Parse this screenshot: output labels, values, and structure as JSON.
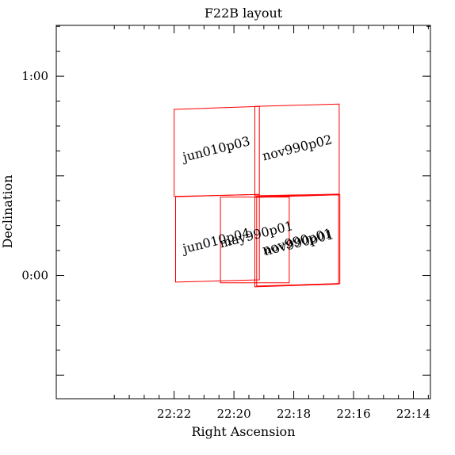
{
  "chart_data": {
    "type": "field-layout",
    "title": "F22B layout",
    "xlabel": "Right Ascension",
    "ylabel": "Declination",
    "x_unit": "RA (minutes past 22h)",
    "y_unit": "Dec (arcminutes)",
    "xlim": [
      25.94,
      13.43
    ],
    "ylim": [
      -37.1,
      75.3
    ],
    "x_ticks": [
      {
        "value": 14,
        "label": "22:14"
      },
      {
        "value": 16,
        "label": "22:16"
      },
      {
        "value": 18,
        "label": "22:18"
      },
      {
        "value": 20,
        "label": "22:20"
      },
      {
        "value": 22,
        "label": "22:22"
      }
    ],
    "y_ticks": [
      {
        "value": -30,
        "label": ""
      },
      {
        "value": 0,
        "label": "0:00"
      },
      {
        "value": 30,
        "label": ""
      },
      {
        "value": 60,
        "label": "1:00"
      }
    ],
    "minor_ticks_per_major": 4,
    "grid": false,
    "outline_color": "#ff0000",
    "fields": [
      {
        "name": "nov990p02",
        "corners": [
          [
            16.48,
            51.6
          ],
          [
            19.3,
            50.9
          ],
          [
            19.3,
            23.5
          ],
          [
            16.48,
            24.3
          ]
        ],
        "label_pos": [
          17.85,
          37.2
        ]
      },
      {
        "name": "jun010p03",
        "corners": [
          [
            19.15,
            50.9
          ],
          [
            22.0,
            50.0
          ],
          [
            22.0,
            23.8
          ],
          [
            19.15,
            24.4
          ]
        ],
        "label_pos": [
          20.55,
          36.8
        ]
      },
      {
        "name": "nov990p01",
        "corners": [
          [
            16.5,
            24.5
          ],
          [
            19.3,
            24.0
          ],
          [
            19.3,
            -3.4
          ],
          [
            16.5,
            -2.6
          ]
        ],
        "label_pos": [
          17.85,
          9.0
        ]
      },
      {
        "name": "nov990p01",
        "corners": [
          [
            16.46,
            24.3
          ],
          [
            19.24,
            23.8
          ],
          [
            19.24,
            -3.2
          ],
          [
            16.46,
            -2.4
          ]
        ],
        "label_pos": [
          17.8,
          8.6
        ]
      },
      {
        "name": "may990p01",
        "corners": [
          [
            18.15,
            23.6
          ],
          [
            20.45,
            23.6
          ],
          [
            20.45,
            -2.2
          ],
          [
            18.15,
            -2.2
          ]
        ],
        "label_pos": [
          19.22,
          11.1
        ]
      },
      {
        "name": "jun010p04",
        "corners": [
          [
            19.15,
            24.4
          ],
          [
            21.95,
            23.7
          ],
          [
            21.95,
            -2.0
          ],
          [
            19.15,
            -1.3
          ]
        ],
        "label_pos": [
          20.55,
          9.2
        ]
      }
    ]
  }
}
